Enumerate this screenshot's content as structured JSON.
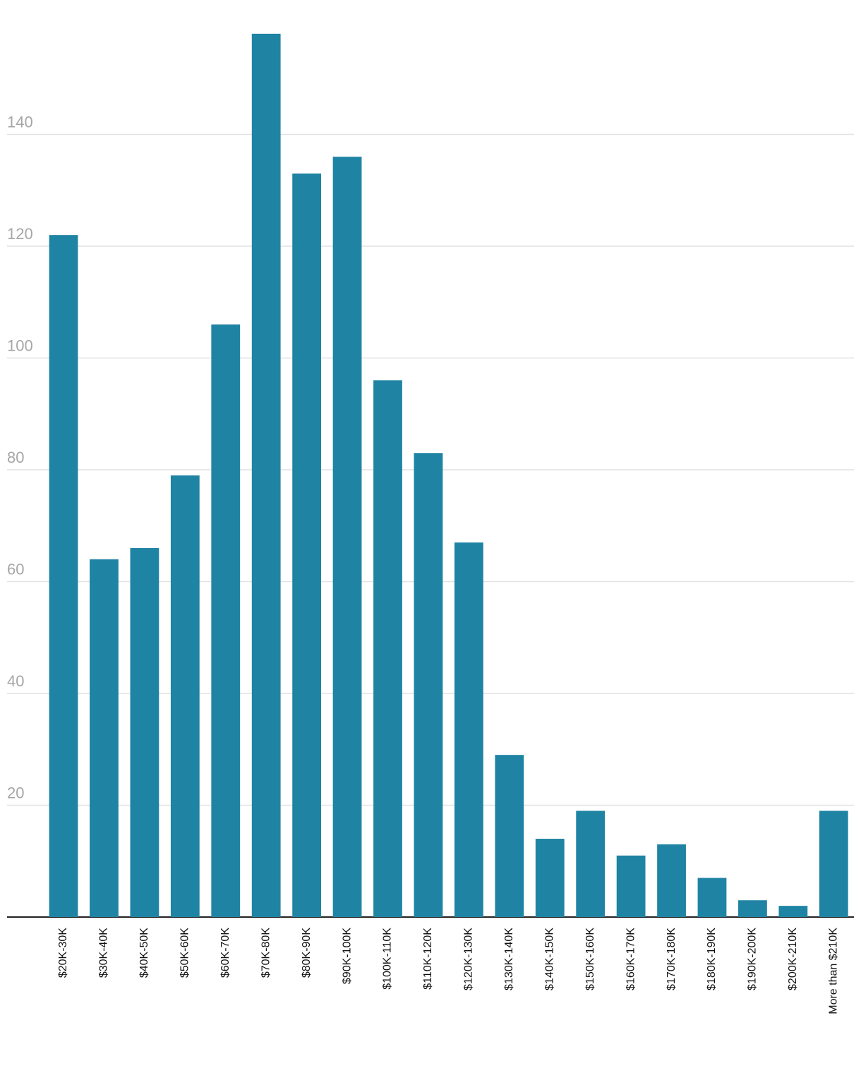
{
  "chart_data": {
    "type": "bar",
    "categories": [
      "$20K-30K",
      "$30K-40K",
      "$40K-50K",
      "$50K-60K",
      "$60K-70K",
      "$70K-80K",
      "$80K-90K",
      "$90K-100K",
      "$100K-110K",
      "$110K-120K",
      "$120K-130K",
      "$130K-140K",
      "$140K-150K",
      "$150K-160K",
      "$160K-170K",
      "$170K-180K",
      "$180K-190K",
      "$190K-200K",
      "$200K-210K",
      "More than $210K"
    ],
    "values": [
      122,
      64,
      66,
      79,
      106,
      158,
      133,
      136,
      96,
      83,
      67,
      29,
      14,
      19,
      11,
      13,
      7,
      3,
      2,
      19
    ],
    "color": "#1f83a3",
    "ylim": [
      0,
      160
    ],
    "yticks": [
      20,
      40,
      60,
      80,
      100,
      120,
      140
    ],
    "grid": true
  }
}
